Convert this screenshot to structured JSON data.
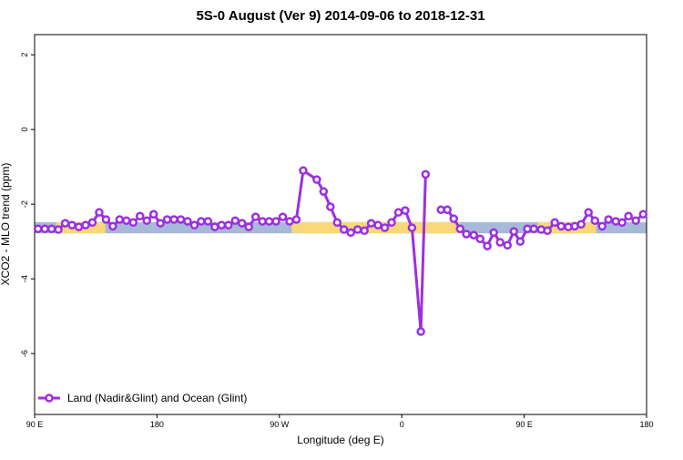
{
  "chart_data": {
    "type": "line",
    "title": "5S-0 August (Ver 9)   2014-09-06 to 2018-12-31",
    "xlabel": "Longitude (deg E)",
    "ylabel": "XCO2 - MLO trend (ppm)",
    "xlim": [
      -270,
      180
    ],
    "ylim": [
      -7.63,
      2.54
    ],
    "xticks": [
      {
        "value": -270,
        "label": "90 E"
      },
      {
        "value": -180,
        "label": "180"
      },
      {
        "value": -90,
        "label": "90 W"
      },
      0,
      {
        "value": 90,
        "label": "90 E"
      },
      {
        "value": 180,
        "label": "180"
      }
    ],
    "yticks": [
      2,
      0,
      -2,
      -4,
      -6
    ],
    "band": {
      "ylim": [
        -2.78,
        -2.48
      ],
      "color": "#a6b9d8",
      "land_color": "#f8d878",
      "land_ranges": [
        [
          -254,
          -218
        ],
        [
          -81,
          43
        ],
        [
          100,
          143
        ]
      ]
    },
    "legend": "bottom-left",
    "series": [
      {
        "name": "Land (Nadir&Glint) and Ocean (Glint)",
        "color": "#9b30e0",
        "x": [
          -267.5,
          -262.5,
          -257.5,
          -252.5,
          -247.5,
          -242.5,
          -237.5,
          -232.5,
          -227.5,
          -222.5,
          -217.5,
          -212.5,
          -207.5,
          -202.5,
          -197.5,
          -192.5,
          -187.5,
          -182.5,
          -177.5,
          -172.5,
          -167.5,
          -162.5,
          -157.5,
          -152.5,
          -147.5,
          -142.5,
          -137.5,
          -132.5,
          -127.5,
          -122.5,
          -117.5,
          -112.5,
          -107.5,
          -102.5,
          -97.5,
          -92.5,
          -87.5,
          -82.5,
          -77.5,
          -72.5,
          -62.5,
          -57.5,
          -52.5,
          -47.5,
          -42.5,
          -37.5,
          -32.5,
          -27.5,
          -22.5,
          -17.5,
          -12.5,
          -7.5,
          -2.5,
          2.5,
          7.5,
          14,
          17.5,
          22.5,
          28.8,
          33.5,
          38.2,
          42.9,
          47.5,
          52.9,
          57.6,
          62.9,
          67.6,
          72.3,
          77.7,
          82.4,
          87.1,
          92.4,
          97.1,
          102.5,
          107.1,
          112.5,
          117.2,
          122.5,
          127.2,
          131.9,
          137.3,
          142,
          147.3,
          152,
          157.4,
          162,
          166.7,
          172.1,
          177.5
        ],
        "values": [
          -2.66,
          -2.66,
          -2.66,
          -2.68,
          -2.51,
          -2.56,
          -2.61,
          -2.56,
          -2.49,
          -2.22,
          -2.41,
          -2.59,
          -2.41,
          -2.44,
          -2.49,
          -2.32,
          -2.44,
          -2.27,
          -2.51,
          -2.41,
          -2.41,
          -2.41,
          -2.46,
          -2.56,
          -2.46,
          -2.46,
          -2.61,
          -2.56,
          -2.56,
          -2.44,
          -2.51,
          -2.61,
          -2.34,
          -2.46,
          -2.46,
          -2.46,
          -2.34,
          -2.46,
          -2.41,
          -1.1,
          -1.34,
          -1.66,
          -2.07,
          -2.49,
          -2.68,
          -2.76,
          -2.68,
          -2.71,
          -2.51,
          -2.56,
          -2.63,
          -2.49,
          -2.22,
          -2.17,
          -2.63,
          -5.41,
          -1.2,
          null,
          -2.15,
          -2.15,
          -2.39,
          -2.66,
          -2.8,
          -2.83,
          -2.93,
          -3.12,
          -2.76,
          -3.02,
          -3.1,
          -2.73,
          -3.0,
          -2.66,
          -2.66,
          -2.68,
          -2.71,
          -2.49,
          -2.59,
          -2.61,
          -2.59,
          -2.54,
          -2.22,
          -2.44,
          -2.59,
          -2.41,
          -2.46,
          -2.49,
          -2.32,
          -2.44,
          -2.27
        ]
      }
    ]
  }
}
